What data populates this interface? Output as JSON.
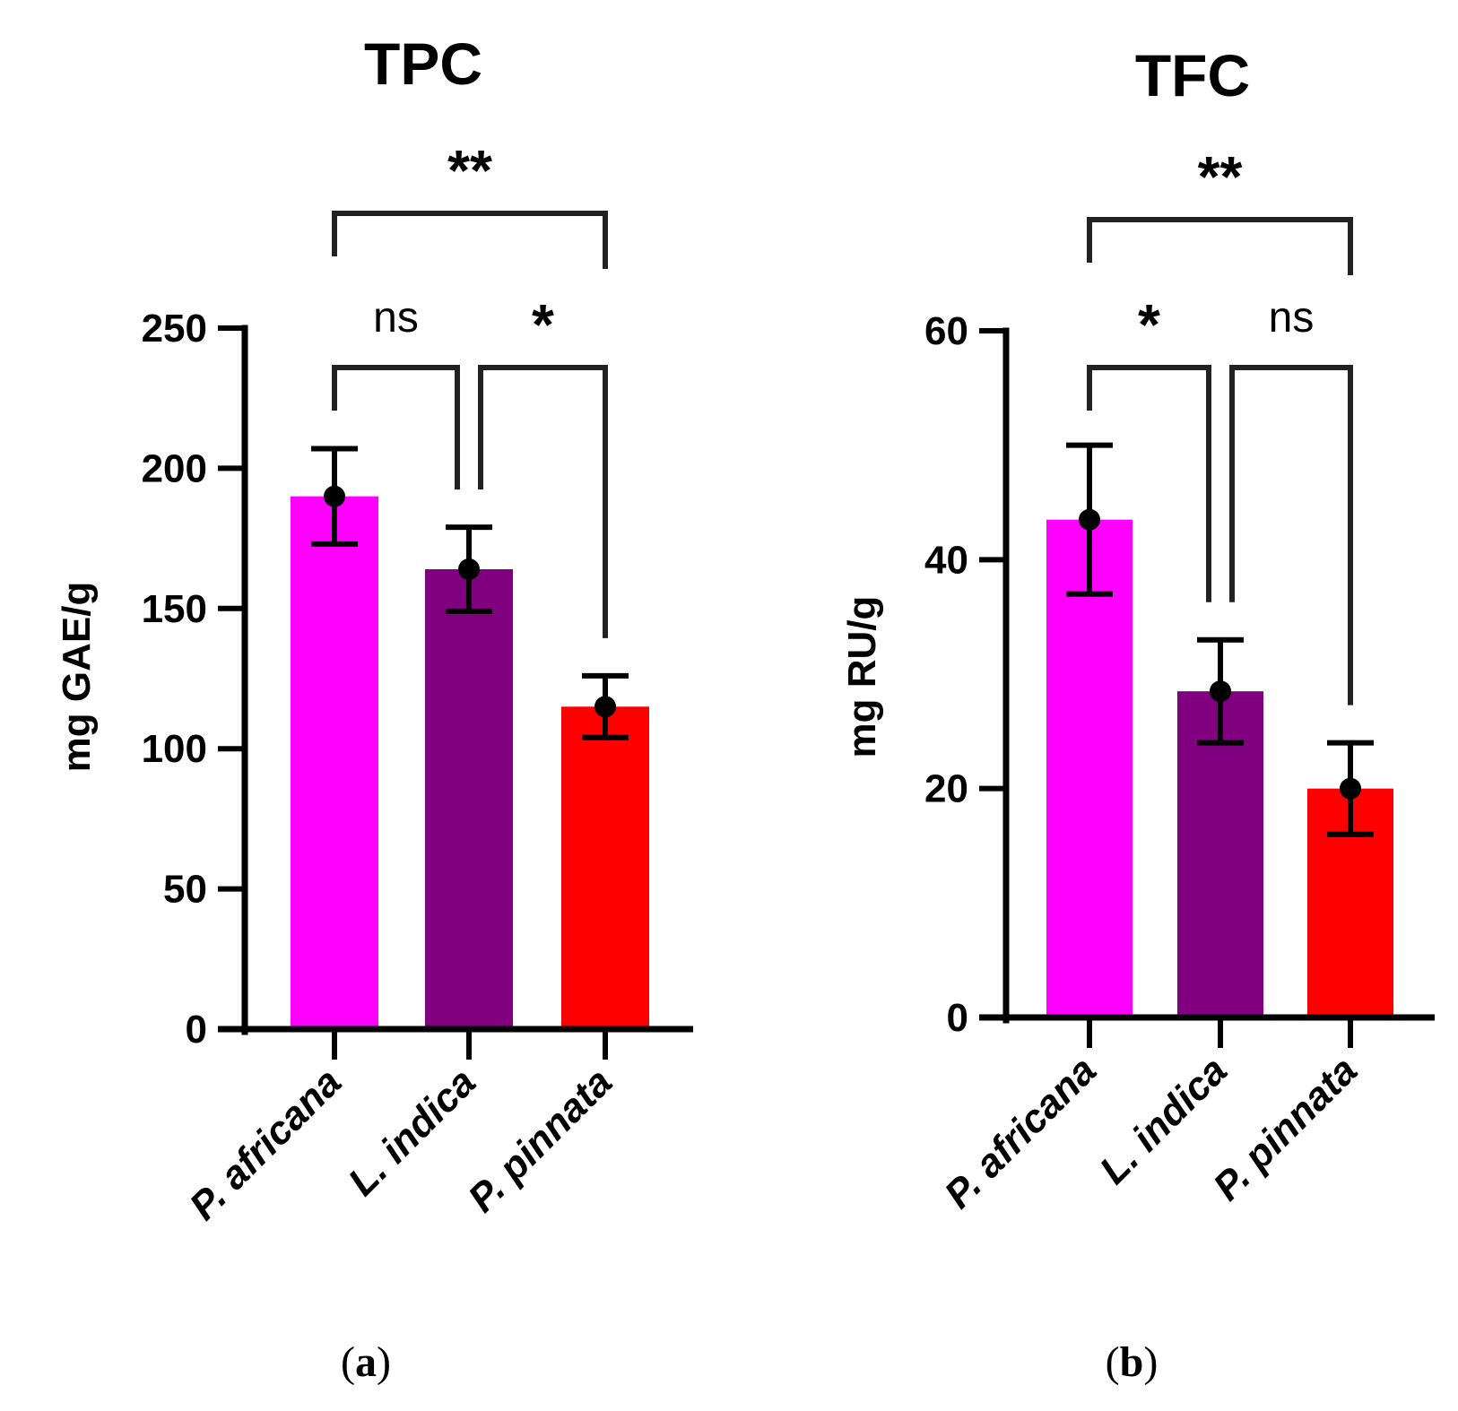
{
  "colors": {
    "magenta": "#FF00FF",
    "purple": "#800080",
    "red": "#FF0000",
    "axis": "#000000",
    "bracket": "#222222"
  },
  "chart_data": [
    {
      "type": "bar",
      "panel_label": {
        "open": "(",
        "letter": "a",
        "close": ")"
      },
      "title": "TPC",
      "ylabel": "mg GAE/g",
      "xlabel": "",
      "ylim": [
        0,
        250
      ],
      "yticks": [
        0,
        50,
        100,
        150,
        200,
        250
      ],
      "categories": [
        "P. africana",
        "L. indica",
        "P. pinnata"
      ],
      "values": [
        190,
        164,
        115
      ],
      "errors": [
        17,
        15,
        11
      ],
      "bar_colors": [
        "#FF00FF",
        "#800080",
        "#FF0000"
      ],
      "significance": [
        {
          "from": 0,
          "to": 1,
          "label": "ns"
        },
        {
          "from": 1,
          "to": 2,
          "label": "*"
        },
        {
          "from": 0,
          "to": 2,
          "label": "**"
        }
      ]
    },
    {
      "type": "bar",
      "panel_label": {
        "open": "(",
        "letter": "b",
        "close": ")"
      },
      "title": "TFC",
      "ylabel": "mg RU/g",
      "xlabel": "",
      "ylim": [
        0,
        60
      ],
      "yticks": [
        0,
        20,
        40,
        60
      ],
      "categories": [
        "P. africana",
        "L. indica",
        "P. pinnata"
      ],
      "values": [
        43.5,
        28.5,
        20
      ],
      "errors": [
        6.5,
        4.5,
        4
      ],
      "bar_colors": [
        "#FF00FF",
        "#800080",
        "#FF0000"
      ],
      "significance": [
        {
          "from": 0,
          "to": 1,
          "label": "*"
        },
        {
          "from": 1,
          "to": 2,
          "label": "ns"
        },
        {
          "from": 0,
          "to": 2,
          "label": "**"
        }
      ]
    }
  ]
}
